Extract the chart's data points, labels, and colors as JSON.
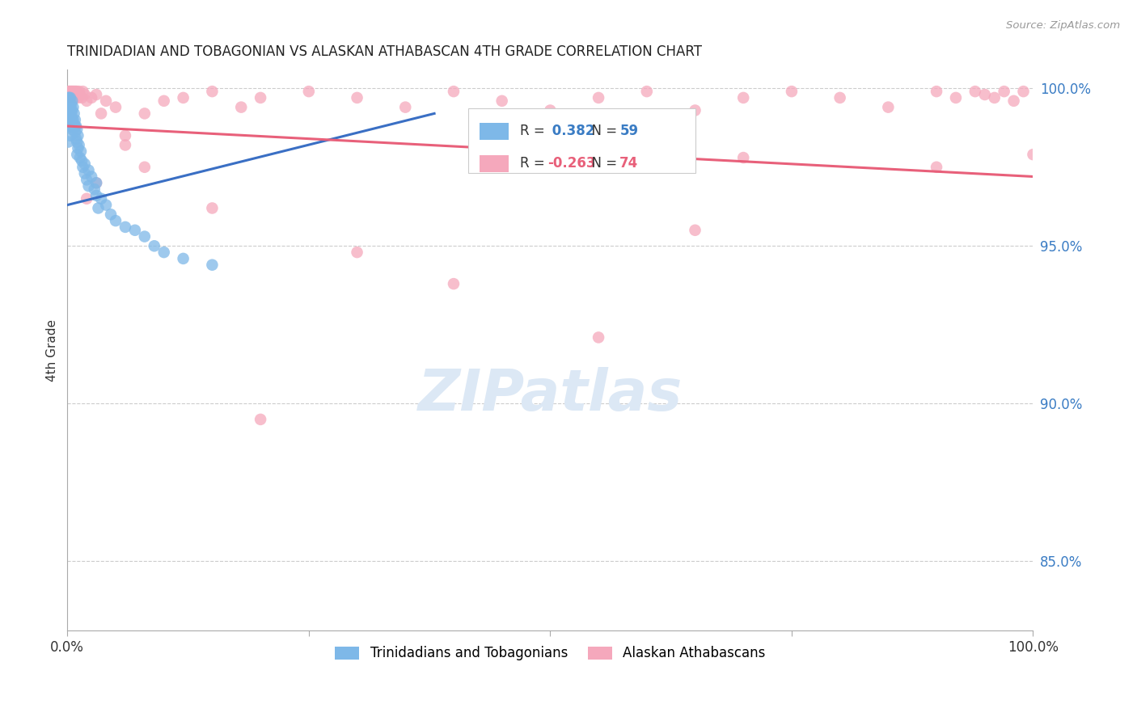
{
  "title": "TRINIDADIAN AND TOBAGONIAN VS ALASKAN ATHABASCAN 4TH GRADE CORRELATION CHART",
  "source": "Source: ZipAtlas.com",
  "ylabel": "4th Grade",
  "legend_label_blue": "Trinidadians and Tobagonians",
  "legend_label_pink": "Alaskan Athabascans",
  "R_blue": 0.382,
  "N_blue": 59,
  "R_pink": -0.263,
  "N_pink": 74,
  "blue_color": "#7eb8e8",
  "pink_color": "#f5a8bc",
  "blue_line_color": "#3a6fc4",
  "pink_line_color": "#e8607a",
  "background_color": "#ffffff",
  "grid_color": "#cccccc",
  "xlim": [
    0.0,
    1.0
  ],
  "ylim": [
    0.828,
    1.006
  ],
  "yticks": [
    0.85,
    0.9,
    0.95,
    1.0
  ],
  "blue_trend_x": [
    0.0,
    0.38
  ],
  "blue_trend_y": [
    0.963,
    0.992
  ],
  "pink_trend_x": [
    0.0,
    1.0
  ],
  "pink_trend_y": [
    0.988,
    0.972
  ],
  "watermark_text": "ZIPatlas",
  "watermark_color": "#dce8f5",
  "title_fontsize": 12,
  "axis_label_fontsize": 11,
  "tick_fontsize": 12,
  "legend_fontsize": 12
}
